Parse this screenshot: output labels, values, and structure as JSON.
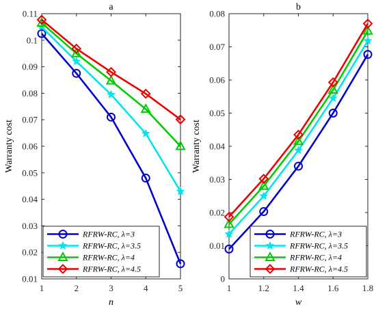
{
  "chart_data": [
    {
      "type": "line",
      "title": "a",
      "xlabel": "n",
      "ylabel": "Warranty cost",
      "xlim": [
        1,
        5
      ],
      "ylim": [
        0.01,
        0.11
      ],
      "xticks": [
        "1",
        "2",
        "3",
        "4",
        "5"
      ],
      "yticks": [
        "0.01",
        "0.02",
        "0.03",
        "0.04",
        "0.05",
        "0.06",
        "0.07",
        "0.08",
        "0.09",
        "0.1",
        "0.11"
      ],
      "grid": false,
      "legend_position": "bottom-left",
      "x": [
        1,
        2,
        3,
        4,
        5
      ],
      "series": [
        {
          "name": "RFRW-RC, λ=3",
          "values": [
            0.1025,
            0.0875,
            0.071,
            0.048,
            0.0157
          ],
          "color": "#0000cc",
          "marker": "circle"
        },
        {
          "name": "RFRW-RC, λ=3.5",
          "values": [
            0.105,
            0.092,
            0.0795,
            0.0648,
            0.043
          ],
          "color": "#00e5ee",
          "marker": "star"
        },
        {
          "name": "RFRW-RC, λ=4",
          "values": [
            0.1065,
            0.095,
            0.0847,
            0.074,
            0.06
          ],
          "color": "#00cc00",
          "marker": "triangle"
        },
        {
          "name": "RFRW-RC, λ=4.5",
          "values": [
            0.1077,
            0.0968,
            0.088,
            0.0798,
            0.0701
          ],
          "color": "#ee0000",
          "marker": "diamond"
        }
      ]
    },
    {
      "type": "line",
      "title": "b",
      "xlabel": "w",
      "ylabel": "Warranty cost",
      "xlim": [
        1,
        1.8
      ],
      "ylim": [
        0,
        0.08
      ],
      "xticks": [
        "1",
        "1.2",
        "1.4",
        "1.6",
        "1.8"
      ],
      "yticks": [
        "0",
        "0.01",
        "0.02",
        "0.03",
        "0.04",
        "0.05",
        "0.06",
        "0.07",
        "0.08"
      ],
      "grid": false,
      "legend_position": "bottom-right",
      "x": [
        1,
        1.2,
        1.4,
        1.6,
        1.8
      ],
      "series": [
        {
          "name": "RFRW-RC, λ=3",
          "values": [
            0.009,
            0.0203,
            0.034,
            0.05,
            0.0677
          ],
          "color": "#0000cc",
          "marker": "circle"
        },
        {
          "name": "RFRW-RC, λ=3.5",
          "values": [
            0.0135,
            0.025,
            0.0388,
            0.0545,
            0.0718
          ],
          "color": "#00e5ee",
          "marker": "star"
        },
        {
          "name": "RFRW-RC, λ=4",
          "values": [
            0.0165,
            0.028,
            0.0415,
            0.057,
            0.0748
          ],
          "color": "#00cc00",
          "marker": "triangle"
        },
        {
          "name": "RFRW-RC, λ=4.5",
          "values": [
            0.0187,
            0.0302,
            0.0435,
            0.0593,
            0.077
          ],
          "color": "#ee0000",
          "marker": "diamond"
        }
      ]
    }
  ]
}
